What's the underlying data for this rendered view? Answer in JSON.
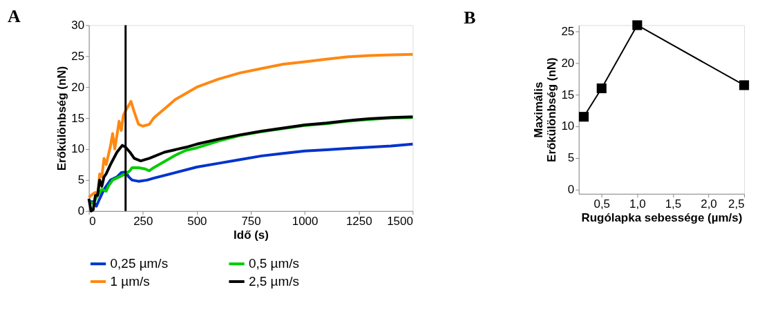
{
  "chart_data": [
    {
      "type": "line",
      "title": "A",
      "xlabel": "Idő (s)",
      "ylabel": "Erőkülönbség (nN)",
      "xlim": [
        0,
        1500
      ],
      "ylim": [
        0,
        30
      ],
      "xticks": [
        0,
        250,
        500,
        750,
        1000,
        1250,
        1500
      ],
      "yticks": [
        0,
        5,
        10,
        15,
        20,
        25,
        30
      ],
      "grid": false,
      "legend": "bottom",
      "marker": "none",
      "line_style": "solid",
      "ref_lines": [
        {
          "axis": "x",
          "value": 170,
          "color": "#000000"
        }
      ],
      "series": [
        {
          "name": "0,25 µm/s",
          "color": "#0033cc",
          "x": [
            0,
            20,
            35,
            50,
            70,
            100,
            130,
            150,
            170,
            185,
            200,
            230,
            270,
            300,
            400,
            500,
            600,
            700,
            800,
            900,
            1000,
            1100,
            1200,
            1300,
            1400,
            1500
          ],
          "values": [
            1.5,
            1.5,
            0.8,
            2,
            3.5,
            5,
            5.5,
            6.2,
            6.3,
            5.5,
            5,
            4.8,
            5,
            5.3,
            6.2,
            7.1,
            7.7,
            8.3,
            8.9,
            9.3,
            9.7,
            9.9,
            10.1,
            10.3,
            10.5,
            10.8
          ]
        },
        {
          "name": "0,5 µm/s",
          "color": "#00cc00",
          "x": [
            0,
            20,
            40,
            60,
            80,
            90,
            110,
            140,
            170,
            190,
            200,
            230,
            260,
            280,
            300,
            350,
            400,
            450,
            500,
            600,
            700,
            800,
            900,
            1000,
            1100,
            1200,
            1300,
            1400,
            1500
          ],
          "values": [
            1.5,
            1.2,
            2.5,
            3.5,
            3.2,
            4,
            5,
            5.5,
            6,
            6.5,
            7,
            7,
            6.8,
            6.5,
            7,
            8,
            9,
            9.8,
            10.2,
            11.3,
            12.2,
            12.8,
            13.3,
            13.8,
            14.1,
            14.5,
            14.8,
            15,
            15.1
          ]
        },
        {
          "name": "1 µm/s",
          "color": "#ff8811",
          "x": [
            0,
            20,
            30,
            40,
            50,
            60,
            70,
            80,
            100,
            110,
            120,
            140,
            150,
            160,
            175,
            195,
            210,
            230,
            250,
            280,
            300,
            350,
            400,
            450,
            500,
            600,
            700,
            800,
            900,
            1000,
            1100,
            1200,
            1300,
            1400,
            1500
          ],
          "values": [
            2.2,
            2.8,
            3,
            2.5,
            6,
            5.5,
            8.5,
            7.5,
            10.5,
            12.5,
            10,
            14.5,
            13,
            15.5,
            16.5,
            17.7,
            16,
            14,
            13.7,
            14,
            15,
            16.5,
            18,
            19,
            20,
            21.3,
            22.3,
            23,
            23.7,
            24.1,
            24.5,
            24.9,
            25.1,
            25.2,
            25.3
          ]
        },
        {
          "name": "2,5 µm/s",
          "color": "#000000",
          "x": [
            0,
            10,
            20,
            30,
            40,
            50,
            60,
            70,
            80,
            100,
            130,
            155,
            170,
            190,
            210,
            240,
            280,
            350,
            450,
            500,
            600,
            700,
            800,
            900,
            1000,
            1100,
            1200,
            1300,
            1400,
            1500
          ],
          "values": [
            2,
            0,
            0.2,
            2.5,
            2.5,
            5,
            4,
            5.5,
            6,
            7.5,
            9.5,
            10.6,
            10.3,
            9.5,
            8.5,
            8.1,
            8.5,
            9.5,
            10.3,
            10.8,
            11.6,
            12.3,
            12.9,
            13.4,
            13.9,
            14.2,
            14.6,
            14.9,
            15.1,
            15.2
          ]
        }
      ]
    },
    {
      "type": "line",
      "title": "B",
      "xlabel": "Rugólapka sebessége (µm/s)",
      "ylabel": "Maximális\nErőkülönbség (nN)",
      "xlim": [
        0.18,
        2.5
      ],
      "ylim": [
        -0.7,
        26
      ],
      "xticks": [
        {
          "value": 0.5,
          "label": "0,5"
        },
        {
          "value": 1.0,
          "label": "1,0"
        },
        {
          "value": 1.5,
          "label": "1,5"
        },
        {
          "value": 2.0,
          "label": "2,0"
        },
        {
          "value": 2.5,
          "label": "2,5"
        }
      ],
      "yticks": [
        0,
        5,
        10,
        15,
        20,
        25
      ],
      "grid": false,
      "legend": false,
      "marker": "square",
      "line_style": "solid",
      "series": [
        {
          "color": "#000000",
          "x": [
            0.25,
            0.5,
            1.0,
            2.5
          ],
          "values": [
            11.5,
            16,
            26,
            16.5
          ]
        }
      ]
    }
  ]
}
